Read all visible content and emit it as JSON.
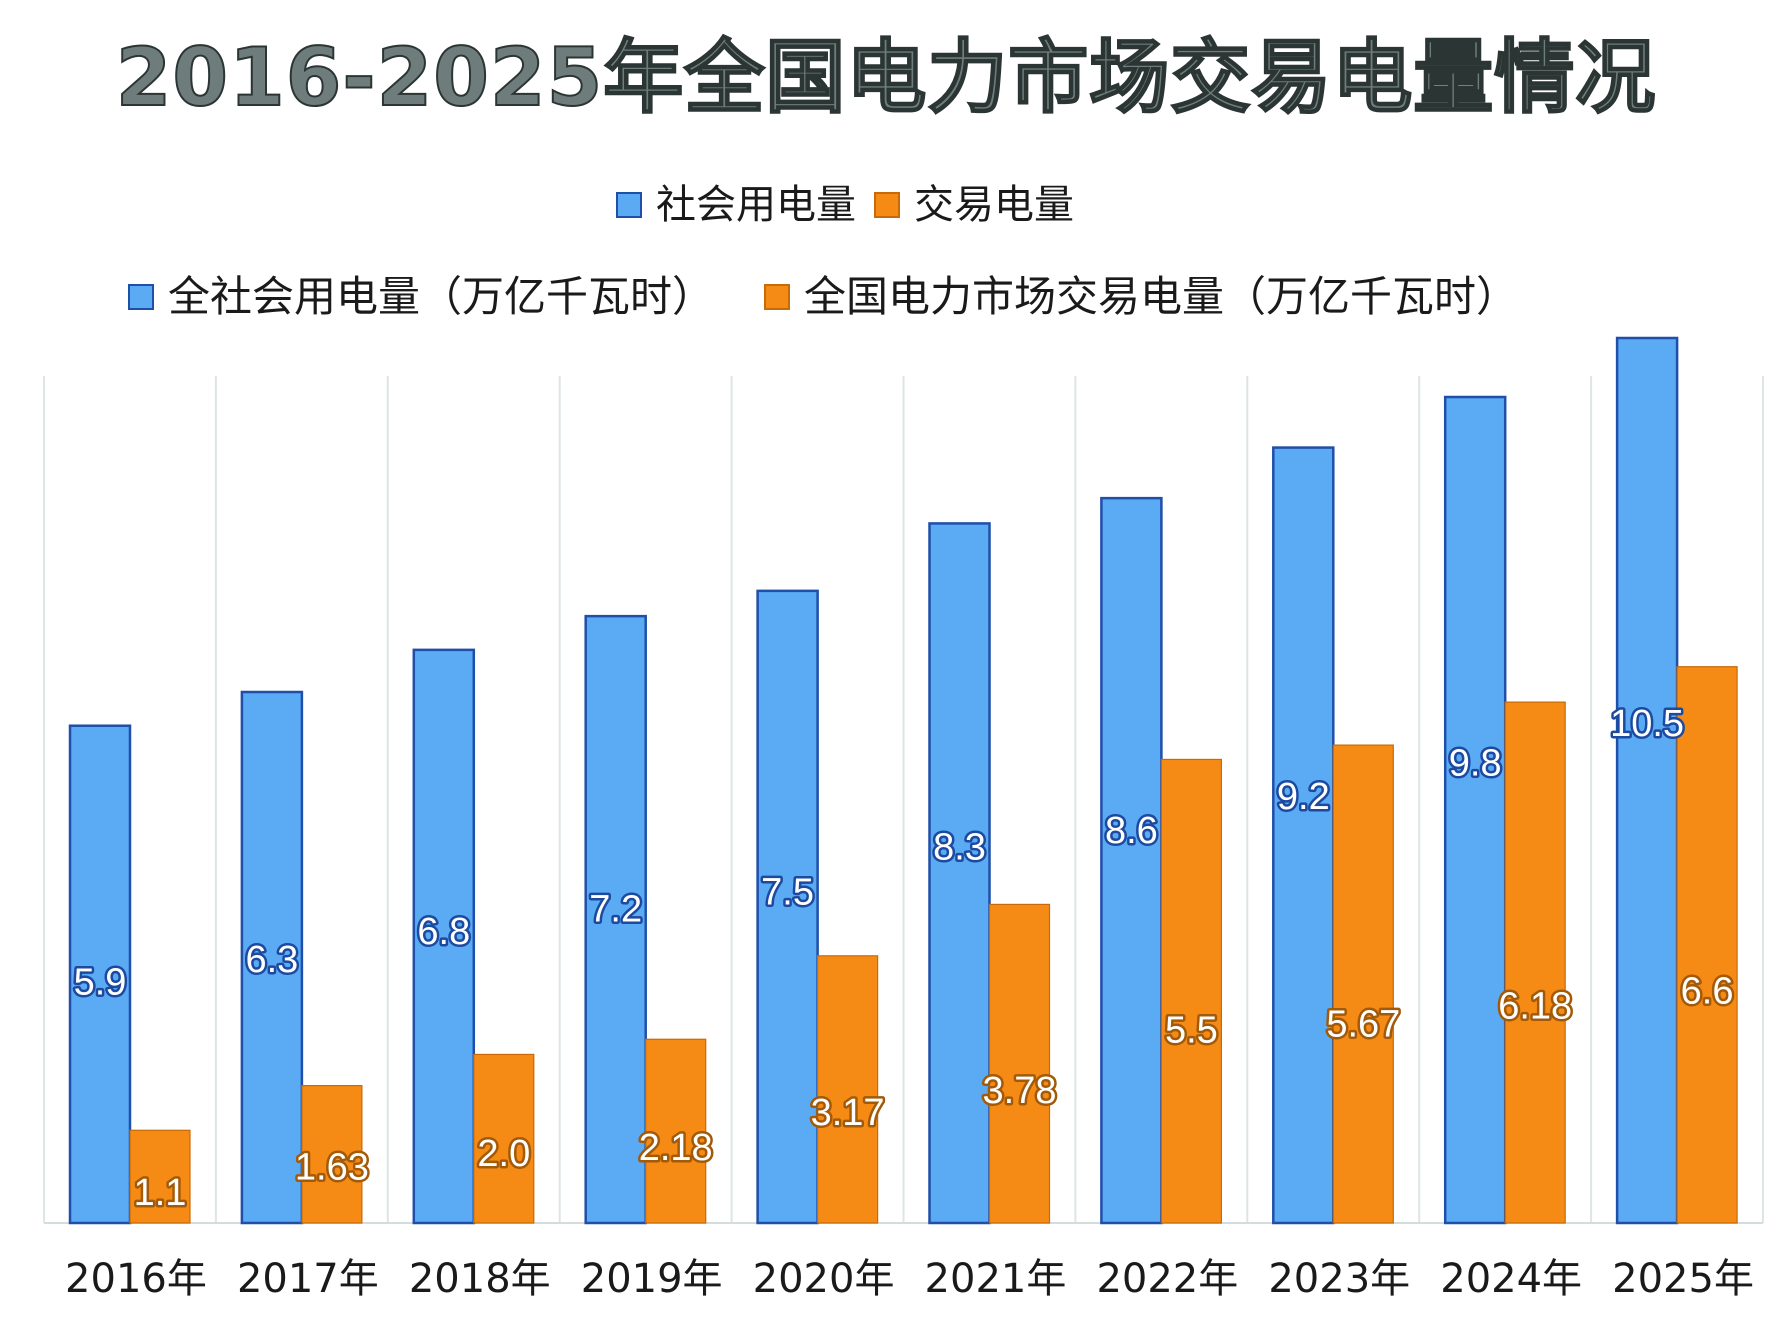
{
  "chart_data": {
    "type": "bar",
    "title": "2016-2025年全国电力市场交易电量情况",
    "legend_primary": [
      "社会用电量",
      "交易电量"
    ],
    "legend_secondary": [
      "全社会用电量（万亿千瓦时）",
      "全国电力市场交易电量（万亿千瓦时）"
    ],
    "legend_placement": "top-center",
    "xlabel": "",
    "ylabel": "",
    "ylim": [
      0,
      11
    ],
    "grid": "vertical category separators",
    "categories": [
      "2016年",
      "2017年",
      "2018年",
      "2019年",
      "2020年",
      "2021年",
      "2022年",
      "2023年",
      "2024年",
      "2025年"
    ],
    "series": [
      {
        "name": "全社会用电量（万亿千瓦时）",
        "color": "#5aaaf4",
        "values": [
          5.9,
          6.3,
          6.8,
          7.2,
          7.5,
          8.3,
          8.6,
          9.2,
          9.8,
          10.5
        ],
        "labels": [
          "5.9",
          "6.3",
          "6.8",
          "7.2",
          "7.5",
          "8.3",
          "8.6",
          "9.2",
          "9.8",
          "10.5"
        ]
      },
      {
        "name": "全国电力市场交易电量（万亿千瓦时）",
        "color": "#f58b14",
        "values": [
          1.1,
          1.63,
          2.0,
          2.18,
          3.17,
          3.78,
          5.5,
          5.67,
          6.18,
          6.6
        ],
        "labels": [
          "1.1",
          "1.63",
          "2.0",
          "2.18",
          "3.17",
          "3.78",
          "5.5",
          "5.67",
          "6.18",
          "6.6"
        ]
      }
    ]
  }
}
